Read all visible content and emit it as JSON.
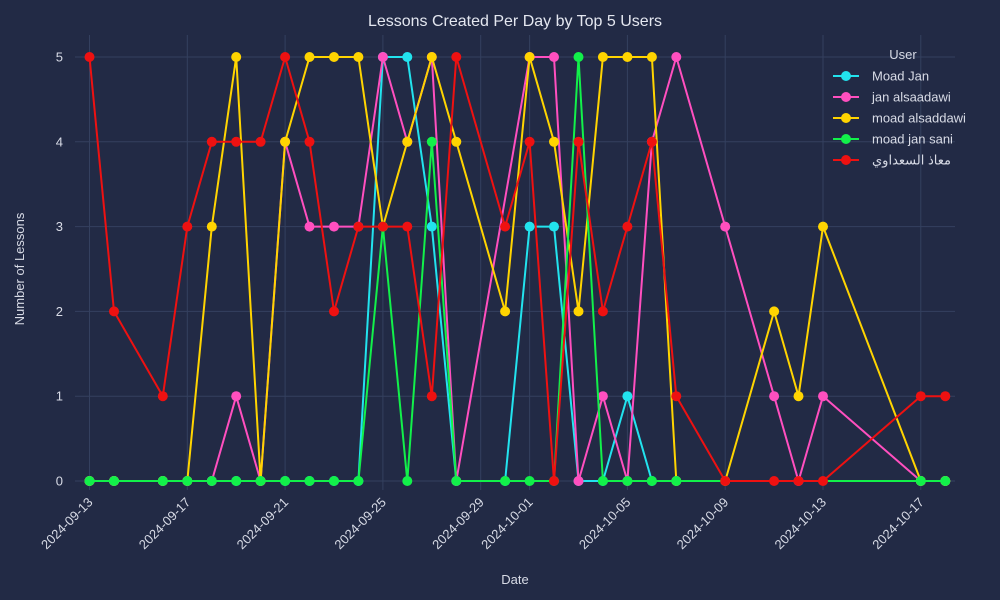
{
  "chart_data": {
    "type": "line",
    "title": "Lessons Created Per Day by Top 5 Users",
    "xlabel": "Date",
    "ylabel": "Number of Lessons",
    "x_tick_labels": [
      "2024-09-13",
      "2024-09-17",
      "2024-09-21",
      "2024-09-25",
      "2024-09-29",
      "2024-10-01",
      "2024-10-05",
      "2024-10-09",
      "2024-10-13",
      "2024-10-17"
    ],
    "y_tick_labels": [
      "0",
      "1",
      "2",
      "3",
      "4",
      "5"
    ],
    "ylim": [
      0,
      5
    ],
    "grid": true,
    "legend": {
      "title": "User",
      "placement": "top-right"
    },
    "series": [
      {
        "name": "Moad Jan",
        "color": "#22e3ee",
        "points": [
          [
            "2024-09-13",
            0
          ],
          [
            "2024-09-14",
            0
          ],
          [
            "2024-09-16",
            0
          ],
          [
            "2024-09-17",
            0
          ],
          [
            "2024-09-18",
            0
          ],
          [
            "2024-09-19",
            0
          ],
          [
            "2024-09-20",
            0
          ],
          [
            "2024-09-21",
            0
          ],
          [
            "2024-09-22",
            0
          ],
          [
            "2024-09-23",
            0
          ],
          [
            "2024-09-24",
            0
          ],
          [
            "2024-09-25",
            5
          ],
          [
            "2024-09-26",
            5
          ],
          [
            "2024-09-27",
            3
          ],
          [
            "2024-09-28",
            0
          ],
          [
            "2024-09-30",
            0
          ],
          [
            "2024-10-01",
            3
          ],
          [
            "2024-10-02",
            3
          ],
          [
            "2024-10-03",
            0
          ],
          [
            "2024-10-04",
            0
          ],
          [
            "2024-10-05",
            1
          ],
          [
            "2024-10-06",
            0
          ],
          [
            "2024-10-07",
            0
          ],
          [
            "2024-10-17",
            0
          ],
          [
            "2024-10-18",
            0
          ]
        ]
      },
      {
        "name": "jan alsaadawi",
        "color": "#ff4fbf",
        "points": [
          [
            "2024-09-13",
            0
          ],
          [
            "2024-09-14",
            0
          ],
          [
            "2024-09-16",
            0
          ],
          [
            "2024-09-17",
            0
          ],
          [
            "2024-09-18",
            0
          ],
          [
            "2024-09-19",
            1
          ],
          [
            "2024-09-20",
            0
          ],
          [
            "2024-09-21",
            4
          ],
          [
            "2024-09-22",
            3
          ],
          [
            "2024-09-23",
            3
          ],
          [
            "2024-09-24",
            3
          ],
          [
            "2024-09-25",
            5
          ],
          [
            "2024-09-26",
            4
          ],
          [
            "2024-09-27",
            5
          ],
          [
            "2024-09-28",
            0
          ],
          [
            "2024-10-01",
            5
          ],
          [
            "2024-10-02",
            5
          ],
          [
            "2024-10-03",
            0
          ],
          [
            "2024-10-04",
            1
          ],
          [
            "2024-10-05",
            0
          ],
          [
            "2024-10-06",
            4
          ],
          [
            "2024-10-07",
            5
          ],
          [
            "2024-10-09",
            3
          ],
          [
            "2024-10-11",
            1
          ],
          [
            "2024-10-12",
            0
          ],
          [
            "2024-10-13",
            1
          ],
          [
            "2024-10-17",
            0
          ],
          [
            "2024-10-18",
            0
          ]
        ]
      },
      {
        "name": "moad alsaddawi",
        "color": "#ffd400",
        "points": [
          [
            "2024-09-13",
            0
          ],
          [
            "2024-09-14",
            0
          ],
          [
            "2024-09-16",
            0
          ],
          [
            "2024-09-17",
            0
          ],
          [
            "2024-09-18",
            3
          ],
          [
            "2024-09-19",
            5
          ],
          [
            "2024-09-20",
            0
          ],
          [
            "2024-09-21",
            4
          ],
          [
            "2024-09-22",
            5
          ],
          [
            "2024-09-23",
            5
          ],
          [
            "2024-09-24",
            5
          ],
          [
            "2024-09-25",
            3
          ],
          [
            "2024-09-26",
            4
          ],
          [
            "2024-09-27",
            5
          ],
          [
            "2024-09-28",
            4
          ],
          [
            "2024-09-30",
            2
          ],
          [
            "2024-10-01",
            5
          ],
          [
            "2024-10-02",
            4
          ],
          [
            "2024-10-03",
            2
          ],
          [
            "2024-10-04",
            5
          ],
          [
            "2024-10-05",
            5
          ],
          [
            "2024-10-06",
            5
          ],
          [
            "2024-10-07",
            0
          ],
          [
            "2024-10-09",
            0
          ],
          [
            "2024-10-11",
            2
          ],
          [
            "2024-10-12",
            1
          ],
          [
            "2024-10-13",
            3
          ],
          [
            "2024-10-17",
            0
          ],
          [
            "2024-10-18",
            0
          ]
        ]
      },
      {
        "name": "moad jan sani",
        "color": "#12f04a",
        "points": [
          [
            "2024-09-13",
            0
          ],
          [
            "2024-09-14",
            0
          ],
          [
            "2024-09-16",
            0
          ],
          [
            "2024-09-17",
            0
          ],
          [
            "2024-09-18",
            0
          ],
          [
            "2024-09-19",
            0
          ],
          [
            "2024-09-20",
            0
          ],
          [
            "2024-09-21",
            0
          ],
          [
            "2024-09-22",
            0
          ],
          [
            "2024-09-23",
            0
          ],
          [
            "2024-09-24",
            0
          ],
          [
            "2024-09-25",
            3
          ],
          [
            "2024-09-26",
            0
          ],
          [
            "2024-09-27",
            4
          ],
          [
            "2024-09-28",
            0
          ],
          [
            "2024-09-30",
            0
          ],
          [
            "2024-10-01",
            0
          ],
          [
            "2024-10-02",
            0
          ],
          [
            "2024-10-03",
            5
          ],
          [
            "2024-10-04",
            0
          ],
          [
            "2024-10-05",
            0
          ],
          [
            "2024-10-06",
            0
          ],
          [
            "2024-10-07",
            0
          ],
          [
            "2024-10-17",
            0
          ],
          [
            "2024-10-18",
            0
          ]
        ]
      },
      {
        "name": "معاذ السعداوي",
        "color": "#ee1111",
        "points": [
          [
            "2024-09-13",
            5
          ],
          [
            "2024-09-14",
            2
          ],
          [
            "2024-09-16",
            1
          ],
          [
            "2024-09-17",
            3
          ],
          [
            "2024-09-18",
            4
          ],
          [
            "2024-09-19",
            4
          ],
          [
            "2024-09-20",
            4
          ],
          [
            "2024-09-21",
            5
          ],
          [
            "2024-09-22",
            4
          ],
          [
            "2024-09-23",
            2
          ],
          [
            "2024-09-24",
            3
          ],
          [
            "2024-09-25",
            3
          ],
          [
            "2024-09-26",
            3
          ],
          [
            "2024-09-27",
            1
          ],
          [
            "2024-09-28",
            5
          ],
          [
            "2024-09-30",
            3
          ],
          [
            "2024-10-01",
            4
          ],
          [
            "2024-10-02",
            0
          ],
          [
            "2024-10-03",
            4
          ],
          [
            "2024-10-04",
            2
          ],
          [
            "2024-10-05",
            3
          ],
          [
            "2024-10-06",
            4
          ],
          [
            "2024-10-07",
            1
          ],
          [
            "2024-10-09",
            0
          ],
          [
            "2024-10-11",
            0
          ],
          [
            "2024-10-12",
            0
          ],
          [
            "2024-10-13",
            0
          ],
          [
            "2024-10-17",
            1
          ],
          [
            "2024-10-18",
            1
          ]
        ]
      }
    ]
  }
}
